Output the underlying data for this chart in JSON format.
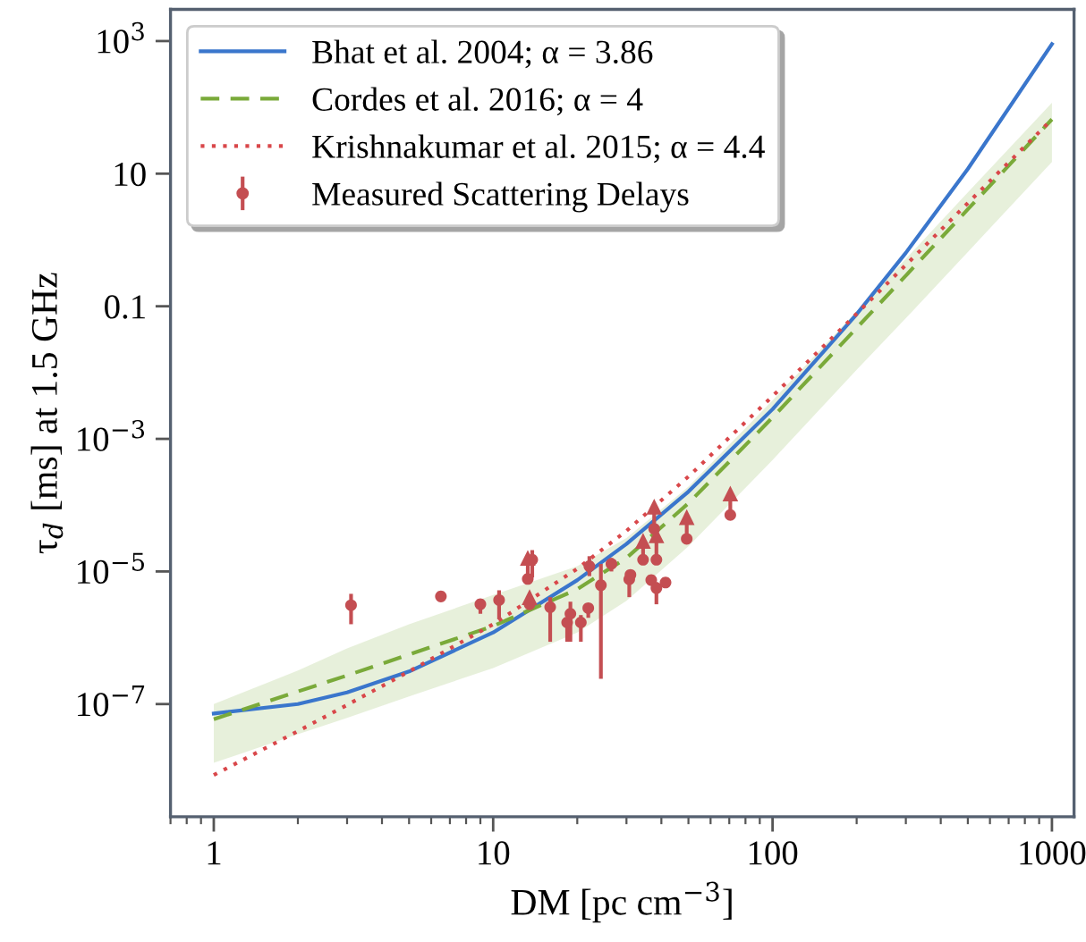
{
  "chart_data": {
    "type": "line",
    "xlabel": "DM [pc cm$^{−3}$]",
    "ylabel": "τ$_{d}$ [ms] at 1.5 GHz",
    "log": "xy",
    "grid": false,
    "legend": "top left",
    "xlim": [
      0.7,
      1200
    ],
    "ylim": [
      2e-09,
      3000
    ],
    "xticks": [
      1,
      10,
      100,
      1000
    ],
    "yticks": [
      {
        "value": 1e-07,
        "label": "10$^{−7}$"
      },
      {
        "value": 1e-05,
        "label": "10$^{−5}$"
      },
      {
        "value": 0.001,
        "label": "10$^{−3}$"
      },
      0.1,
      10,
      {
        "value": 1000,
        "label": "10$^{3}$"
      }
    ],
    "series": [
      {
        "name": "Bhat et al. 2004; α = 3.86",
        "color": "#3a76cc",
        "line_style": "solid",
        "marker": "none",
        "x": [
          1,
          2,
          3,
          5,
          10,
          20,
          30,
          50,
          100,
          200,
          300,
          500,
          1000
        ],
        "values": [
          7.2e-08,
          1e-07,
          1.5e-07,
          3.1e-07,
          1.2e-06,
          7.4e-06,
          2.6e-05,
          0.00016,
          0.0028,
          0.076,
          0.64,
          11.8,
          900
        ]
      },
      {
        "name": "Cordes et al. 2016; α = 4",
        "color": "#7aaa3a",
        "line_style": "dashed",
        "marker": "none",
        "x": [
          1,
          2,
          3,
          5,
          10,
          20,
          30,
          50,
          100,
          200,
          300,
          500,
          1000
        ],
        "values": [
          5.9e-08,
          1.55e-07,
          2.7e-07,
          5.6e-07,
          1.5e-06,
          5.4e-06,
          1.6e-05,
          0.000107,
          0.0021,
          0.047,
          0.29,
          2.9,
          66
        ],
        "lower": [
          1.3e-08,
          3.5e-08,
          6.2e-08,
          1.3e-07,
          3.5e-07,
          1.2e-06,
          3.6e-06,
          2.4e-05,
          0.00048,
          0.011,
          0.066,
          0.66,
          15
        ],
        "upper": [
          1e-07,
          3.2e-07,
          6.9e-07,
          1.6e-06,
          4.4e-06,
          1.2e-05,
          3.2e-05,
          0.00019,
          0.0038,
          0.084,
          0.52,
          5.2,
          117
        ]
      },
      {
        "name": "Krishnakumar et al. 2015; α = 4.4",
        "color": "#d9474a",
        "line_style": "dotted",
        "marker": "none",
        "x": [
          1,
          2,
          3,
          5,
          10,
          20,
          30,
          50,
          100,
          200,
          300,
          500,
          1000
        ],
        "values": [
          8.5e-09,
          3.9e-08,
          9.7e-08,
          3.1e-07,
          1.6e-06,
          1.1e-05,
          4.1e-05,
          0.00027,
          0.0044,
          0.077,
          0.42,
          3.6,
          66
        ]
      },
      {
        "name": "Measured Scattering Delays",
        "type": "scatter",
        "color": "#c44e52",
        "marker": "circle",
        "x": [
          3.1,
          6.5,
          9.0,
          10.5,
          13.3,
          13.8,
          13.5,
          16.0,
          18.4,
          18.9,
          20.6,
          21.9,
          22.1,
          24.3,
          26.5,
          30.7,
          31.0,
          34.4,
          37.7,
          38.4,
          36.8,
          38.4,
          41.4,
          49.3,
          70.6
        ],
        "values": [
          3.1e-06,
          4.2e-06,
          3.2e-06,
          3.7e-06,
          7.7e-06,
          1.5e-05,
          3.2e-06,
          2.9e-06,
          1.7e-06,
          2.3e-06,
          1.7e-06,
          2.8e-06,
          1.2e-05,
          6.2e-06,
          1.3e-05,
          7.6e-06,
          8.9e-06,
          1.5e-05,
          4.4e-05,
          1.5e-05,
          7.4e-06,
          5.6e-06,
          6.8e-06,
          3.1e-05,
          7.1e-05
        ],
        "errors": [
          [
            1.6e-06,
            4.6e-06
          ],
          null,
          [
            2.3e-06,
            3.7e-06
          ],
          [
            1.9e-06,
            5.2e-06
          ],
          [
            7.7e-06,
            1.6e-05
          ],
          [
            8.1e-06,
            2.1e-05
          ],
          [
            3.2e-06,
            4.1e-06
          ],
          [
            8.7e-07,
            4.1e-06
          ],
          [
            8.7e-07,
            2e-06
          ],
          [
            8.7e-07,
            3.5e-06
          ],
          [
            8.7e-07,
            2.2e-06
          ],
          [
            2e-06,
            3.3e-06
          ],
          [
            8.5e-06,
            1.7e-05
          ],
          [
            2.4e-07,
            1.3e-05
          ],
          [
            1e-05,
            1.6e-05
          ],
          [
            4.1e-06,
            1e-05
          ],
          null,
          [
            1.5e-05,
            2.9e-05
          ],
          [
            4.4e-05,
            9.5e-05
          ],
          [
            1.5e-05,
            3.5e-05
          ],
          null,
          [
            3.2e-06,
            6.9e-06
          ],
          null,
          [
            3.1e-05,
            6.6e-05
          ],
          [
            7.1e-05,
            0.00015
          ]
        ]
      },
      {
        "type": "scatter",
        "color": "#c44e52",
        "marker": "triangle",
        "x": [
          13.3,
          13.5,
          34.4,
          37.7,
          38.4,
          49.3,
          70.6
        ],
        "values": [
          1.6e-05,
          4.1e-06,
          2.9e-05,
          9.5e-05,
          3.5e-05,
          6.6e-05,
          0.00015
        ]
      }
    ]
  }
}
